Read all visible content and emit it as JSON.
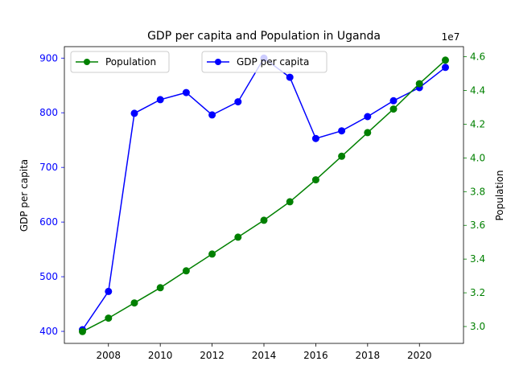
{
  "chart_data": {
    "type": "line",
    "title": "GDP per capita and Population in Uganda",
    "x": [
      2007,
      2008,
      2009,
      2010,
      2011,
      2012,
      2013,
      2014,
      2015,
      2016,
      2017,
      2018,
      2019,
      2020,
      2021
    ],
    "xlim": [
      2006.3,
      2021.7
    ],
    "xticks": [
      2008,
      2010,
      2012,
      2014,
      2016,
      2018,
      2020
    ],
    "series": [
      {
        "name": "GDP per capita",
        "axis": "left",
        "color": "#0000ff",
        "marker": "circle",
        "values": [
          403,
          473,
          799,
          824,
          837,
          796,
          820,
          900,
          865,
          753,
          767,
          793,
          822,
          846,
          883
        ]
      },
      {
        "name": "Population",
        "axis": "right",
        "color": "#008000",
        "marker": "circle",
        "values": [
          29700000,
          30500000,
          31400000,
          32300000,
          33300000,
          34300000,
          35300000,
          36300000,
          37400000,
          38700000,
          40100000,
          41500000,
          42900000,
          44400000,
          45800000
        ]
      }
    ],
    "y_left": {
      "label": "GDP per capita",
      "color": "#0000ff",
      "ylim": [
        378,
        921
      ],
      "ticks": [
        400,
        500,
        600,
        700,
        800,
        900
      ]
    },
    "y_right": {
      "label": "Population",
      "color": "#008000",
      "ylim": [
        29.0,
        46.6
      ],
      "ticks": [
        "3.0",
        "3.2",
        "3.4",
        "3.6",
        "3.8",
        "4.0",
        "4.2",
        "4.4",
        "4.6"
      ],
      "offset_text": "1e7"
    },
    "legends": [
      {
        "location": "upper left",
        "entries": [
          "Population"
        ]
      },
      {
        "location": "upper center",
        "entries": [
          "GDP per capita"
        ]
      }
    ],
    "grid": false
  }
}
